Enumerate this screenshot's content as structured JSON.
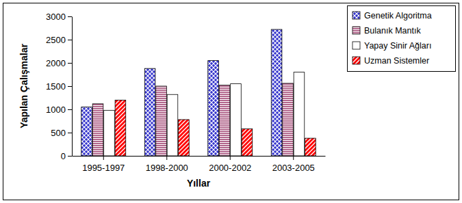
{
  "chart_data": {
    "type": "bar",
    "x_label": "Yıllar",
    "y_label": "Yapılan Çalışmalar",
    "categories": [
      "1995-1997",
      "1998-2000",
      "2000-2002",
      "2003-2005"
    ],
    "series": [
      {
        "name": "Genetik Algoritma",
        "color": "#3333cc",
        "values": [
          1050,
          1880,
          2050,
          2720
        ]
      },
      {
        "name": "Bulanık Mantık",
        "color": "#993366",
        "values": [
          1120,
          1500,
          1520,
          1560
        ]
      },
      {
        "name": "Yapay Sinir Ağları",
        "color": "#ffffff",
        "values": [
          980,
          1320,
          1550,
          1800
        ]
      },
      {
        "name": "Uzman Sistemler",
        "color": "#ff0000",
        "values": [
          1200,
          780,
          580,
          380
        ]
      }
    ],
    "ylim": [
      0,
      3000
    ],
    "yticks": [
      0,
      500,
      1000,
      1500,
      2000,
      2500,
      3000
    ],
    "grid": false,
    "legend": "right"
  }
}
